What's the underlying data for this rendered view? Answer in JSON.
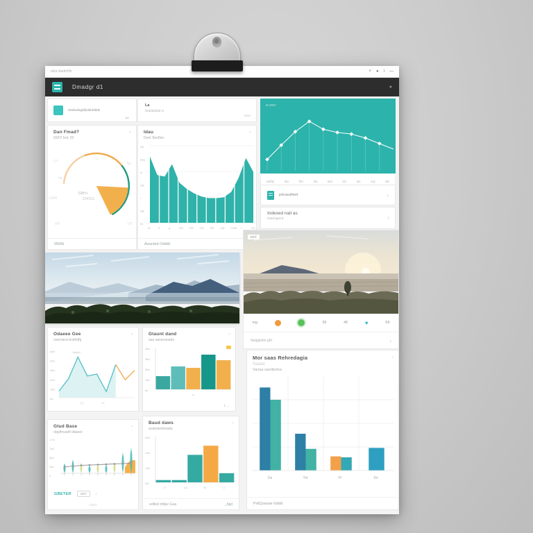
{
  "window": {
    "titlebar": {
      "left_text": "uba bwdrtftr",
      "icons": [
        "˅",
        "●",
        "i",
        "—"
      ]
    },
    "header": {
      "title": "Dmadgr d1",
      "right_icon": "●"
    }
  },
  "top_row": {
    "summary_card": {
      "text": "Ubnbufegd@ddnfddde",
      "hint": "gw"
    },
    "status_card": {
      "title": "La",
      "subtitle": "fwddddddd w",
      "right": "dww"
    }
  },
  "doc_row": {
    "label": "pdraeafieet",
    "chevron": "›"
  },
  "info_row": {
    "title": "Indexed nail as",
    "subtitle": "Datehgierd",
    "chevron": "›"
  },
  "pie_card": {
    "title": "Dan Fmad?",
    "subtitle": "93/07 brd. 92",
    "menu_icon": "⌄",
    "footer": "9666b"
  },
  "area_card": {
    "title": "Idau",
    "subtitle": "Deet Stedfee",
    "menu_icon": "⌄",
    "footer": "Awarded Odddb"
  },
  "photos": {
    "right_badge": "EST"
  },
  "photo_toolbar": {
    "temp": "mg",
    "count1": "39",
    "count2": "46",
    "heart": "♥",
    "count3": "68"
  },
  "photo_meta": {
    "left": "9wtpjd",
    "center": "sfm gfrt",
    "chevron": "›"
  },
  "line_card": {
    "title": "Odaeee Gee",
    "subtitle": "osarnana bndhdfg",
    "menu_icon": "⌄"
  },
  "bar_card": {
    "title": "Gtaunt dand",
    "subtitle": "aaa aavavanado",
    "menu_icon": "⌄",
    "footer_icons": "L ⌄"
  },
  "odd_card": {
    "title": "Gtud Base",
    "subtitle": "rdgdfnvadfi ddaeet",
    "menu_icon": "⌄",
    "link": "GBETER",
    "chip": "CET",
    "chip_icon": "i",
    "footnote": "Cdtr1"
  },
  "midbar_card": {
    "title": "Baud daws",
    "subtitle": "aoatnavdonada",
    "menu_icon": "⌄",
    "footer": "edited mfjav Gaa",
    "footer_link": "_Ajjd"
  },
  "big_card": {
    "title": "Mor saas Rehredagia",
    "title2": "Saaed",
    "subtitle": "Vanaa aavdjvdsa",
    "menu_icon": "⌄",
    "footer": "PrdQuanae Gddd"
  },
  "theme": {
    "accent": "#2cb3ab",
    "orange": "#f2a94b",
    "header_bg": "#2d2d2d",
    "wall": "#cccccc",
    "blue_bar": "#2e7fa6",
    "cyan_bar": "#2e9fc0"
  },
  "chart_data": [
    {
      "renderer": "pie",
      "type": "pie",
      "title": "Dan Fmad?",
      "slices": [
        {
          "label": "GBH+",
          "value": 17,
          "color": "#f2b04c"
        },
        {
          "label": "rest",
          "value": 83,
          "color": "none"
        }
      ],
      "ring_segments": [
        {
          "from": 185,
          "to": 250,
          "color": "#f6d0a2"
        },
        {
          "from": 250,
          "to": 322,
          "color": "#f2a94b"
        },
        {
          "from": 322,
          "to": 420,
          "color": "#1d9b80"
        }
      ],
      "center_labels": [
        "GBH+",
        "DHOOL"
      ],
      "side_labels": [
        {
          "t": "177",
          "x": 6,
          "y": 24
        },
        {
          "t": "hg",
          "x": 12,
          "y": 42
        },
        {
          "t": "12000",
          "x": 1,
          "y": 64
        },
        {
          "t": "920",
          "x": 8,
          "y": 92
        },
        {
          "t": "kg",
          "x": 90,
          "y": 26
        },
        {
          "t": "7000",
          "x": 86,
          "y": 60
        },
        {
          "t": "17Z",
          "x": 90,
          "y": 92
        }
      ],
      "legend_position": "none"
    },
    {
      "renderer": "area",
      "type": "area",
      "title": "Idau",
      "color": "#2fb2aa",
      "values": [
        86,
        62,
        60,
        76,
        52,
        44,
        38,
        34,
        32,
        32,
        33,
        40,
        58,
        84,
        66
      ],
      "ylim": [
        0,
        100
      ],
      "gridlines": 11,
      "y_ticks": [
        "Ob",
        "Gey",
        "G",
        "GB",
        "r",
        "GB",
        "Dr"
      ],
      "x_ticks": [
        "rd",
        "9",
        "g",
        "CW",
        "CW",
        "CW",
        "TW",
        "CW",
        "CCW",
        "r",
        "CG"
      ]
    },
    {
      "renderer": "tealline",
      "type": "line",
      "title": "M 2047 trend",
      "bg": "#2cb3ab",
      "line_color": "#ffffff",
      "values": [
        9,
        27,
        44,
        57,
        47,
        43,
        41,
        36,
        29,
        22
      ],
      "marker_at": [
        0,
        1,
        2,
        3,
        4,
        5,
        6,
        7,
        8
      ],
      "ylim": [
        0,
        70
      ],
      "x_labels": [
        "wdfdy",
        "tien",
        "flirt",
        "rita",
        "tieb",
        "tim",
        "tiet",
        "coy",
        "tith"
      ],
      "overlay_label": "M 2047"
    },
    {
      "renderer": "dualline",
      "type": "line",
      "title": "Odaeee Gee",
      "ylim": [
        0,
        100
      ],
      "y_ticks": [
        "5dd",
        "4dd",
        "3dd",
        "2dd",
        "1dd",
        "dd"
      ],
      "series": [
        {
          "name": "teal",
          "color": "#52bfc4",
          "fill": "rgba(82,191,196,0.20)",
          "values": [
            14,
            40,
            86,
            46,
            50,
            13,
            70,
            null,
            null
          ]
        },
        {
          "name": "orange",
          "color": "#f2a84b",
          "values": [
            null,
            null,
            null,
            null,
            null,
            null,
            70,
            38,
            58
          ]
        }
      ],
      "annotation": "ddddd",
      "x_ticks": [
        "(?)",
        "Yv"
      ]
    },
    {
      "renderer": "bar",
      "type": "bar",
      "title": "Gtaunt dand",
      "ylim": [
        0,
        60
      ],
      "y_ticks": [
        "4bb",
        "3bb",
        "2bb",
        "1bb",
        "bb"
      ],
      "bars": [
        {
          "value": 19,
          "color": "#3aa8a0"
        },
        {
          "value": 33,
          "color": "#5fbdb9"
        },
        {
          "value": 31,
          "color": "#f2b04c"
        },
        {
          "value": 50,
          "color": "#17968a"
        },
        {
          "value": 42,
          "color": "#f2b04c"
        }
      ],
      "x_ticks": [
        "m"
      ],
      "legend_icon_color": "#f5c84a"
    },
    {
      "renderer": "droplet",
      "type": "scatter",
      "style": "droplet",
      "title": "Gtud Base",
      "ylim": [
        0,
        100
      ],
      "y_ticks": [
        "1 rrz",
        "7dd",
        "3dd",
        "2dd",
        "d"
      ],
      "droplets": [
        {
          "h": 28,
          "c": "teal"
        },
        {
          "h": 38,
          "c": "teal"
        },
        {
          "h": 30,
          "c": "yellow"
        },
        {
          "h": 22,
          "c": "teal"
        },
        {
          "h": 26,
          "c": "yellow"
        },
        {
          "h": 24,
          "c": "teal"
        },
        {
          "h": 30,
          "c": "yellow"
        },
        {
          "h": 58,
          "c": "teal"
        },
        {
          "h": 72,
          "c": "teal"
        }
      ],
      "trend": [
        18,
        20,
        22,
        23,
        24,
        25,
        26,
        27,
        28
      ],
      "trend_color": "#8a8a8a",
      "colors": {
        "teal": "rgba(61,186,181,0.85)",
        "yellow": "rgba(214,226,150,0.95)"
      },
      "orange_area": {
        "start": 0.86,
        "height": 40,
        "color": "#f5b04c"
      }
    },
    {
      "renderer": "bar",
      "type": "bar",
      "title": "Baud daws",
      "ylim": [
        0,
        60
      ],
      "y_ticks": [
        "4dd",
        "1dd",
        "7dd",
        "Dd"
      ],
      "bars": [
        {
          "value": 3,
          "color": "#35aaa2"
        },
        {
          "value": 3,
          "color": "#35aaa2"
        },
        {
          "value": 36,
          "color": "#35aaa2"
        },
        {
          "value": 48,
          "color": "#f5a945"
        },
        {
          "value": 12,
          "color": "#35aaa2"
        }
      ],
      "x_ticks": [
        "9",
        "1w",
        "W",
        "Z"
      ]
    },
    {
      "renderer": "groupbar",
      "type": "bar",
      "title": "Mor saas Rehredagia",
      "ylim": [
        0,
        100
      ],
      "grid": true,
      "categories": [
        "Oa",
        "Tid",
        "Pi",
        "Do"
      ],
      "groups": [
        [
          {
            "value": 88,
            "color": "#2e7fa6"
          },
          {
            "value": 75,
            "color": "#41b2a4"
          }
        ],
        [
          {
            "value": 39,
            "color": "#2e7fa6"
          },
          {
            "value": 23,
            "color": "#41b2a4"
          }
        ],
        [
          {
            "value": 15,
            "color": "#f2a04a"
          },
          {
            "value": 14,
            "color": "#35a8b5"
          }
        ],
        [
          {
            "value": 24,
            "color": "#2e9fc0",
            "wide": true
          }
        ]
      ]
    }
  ]
}
